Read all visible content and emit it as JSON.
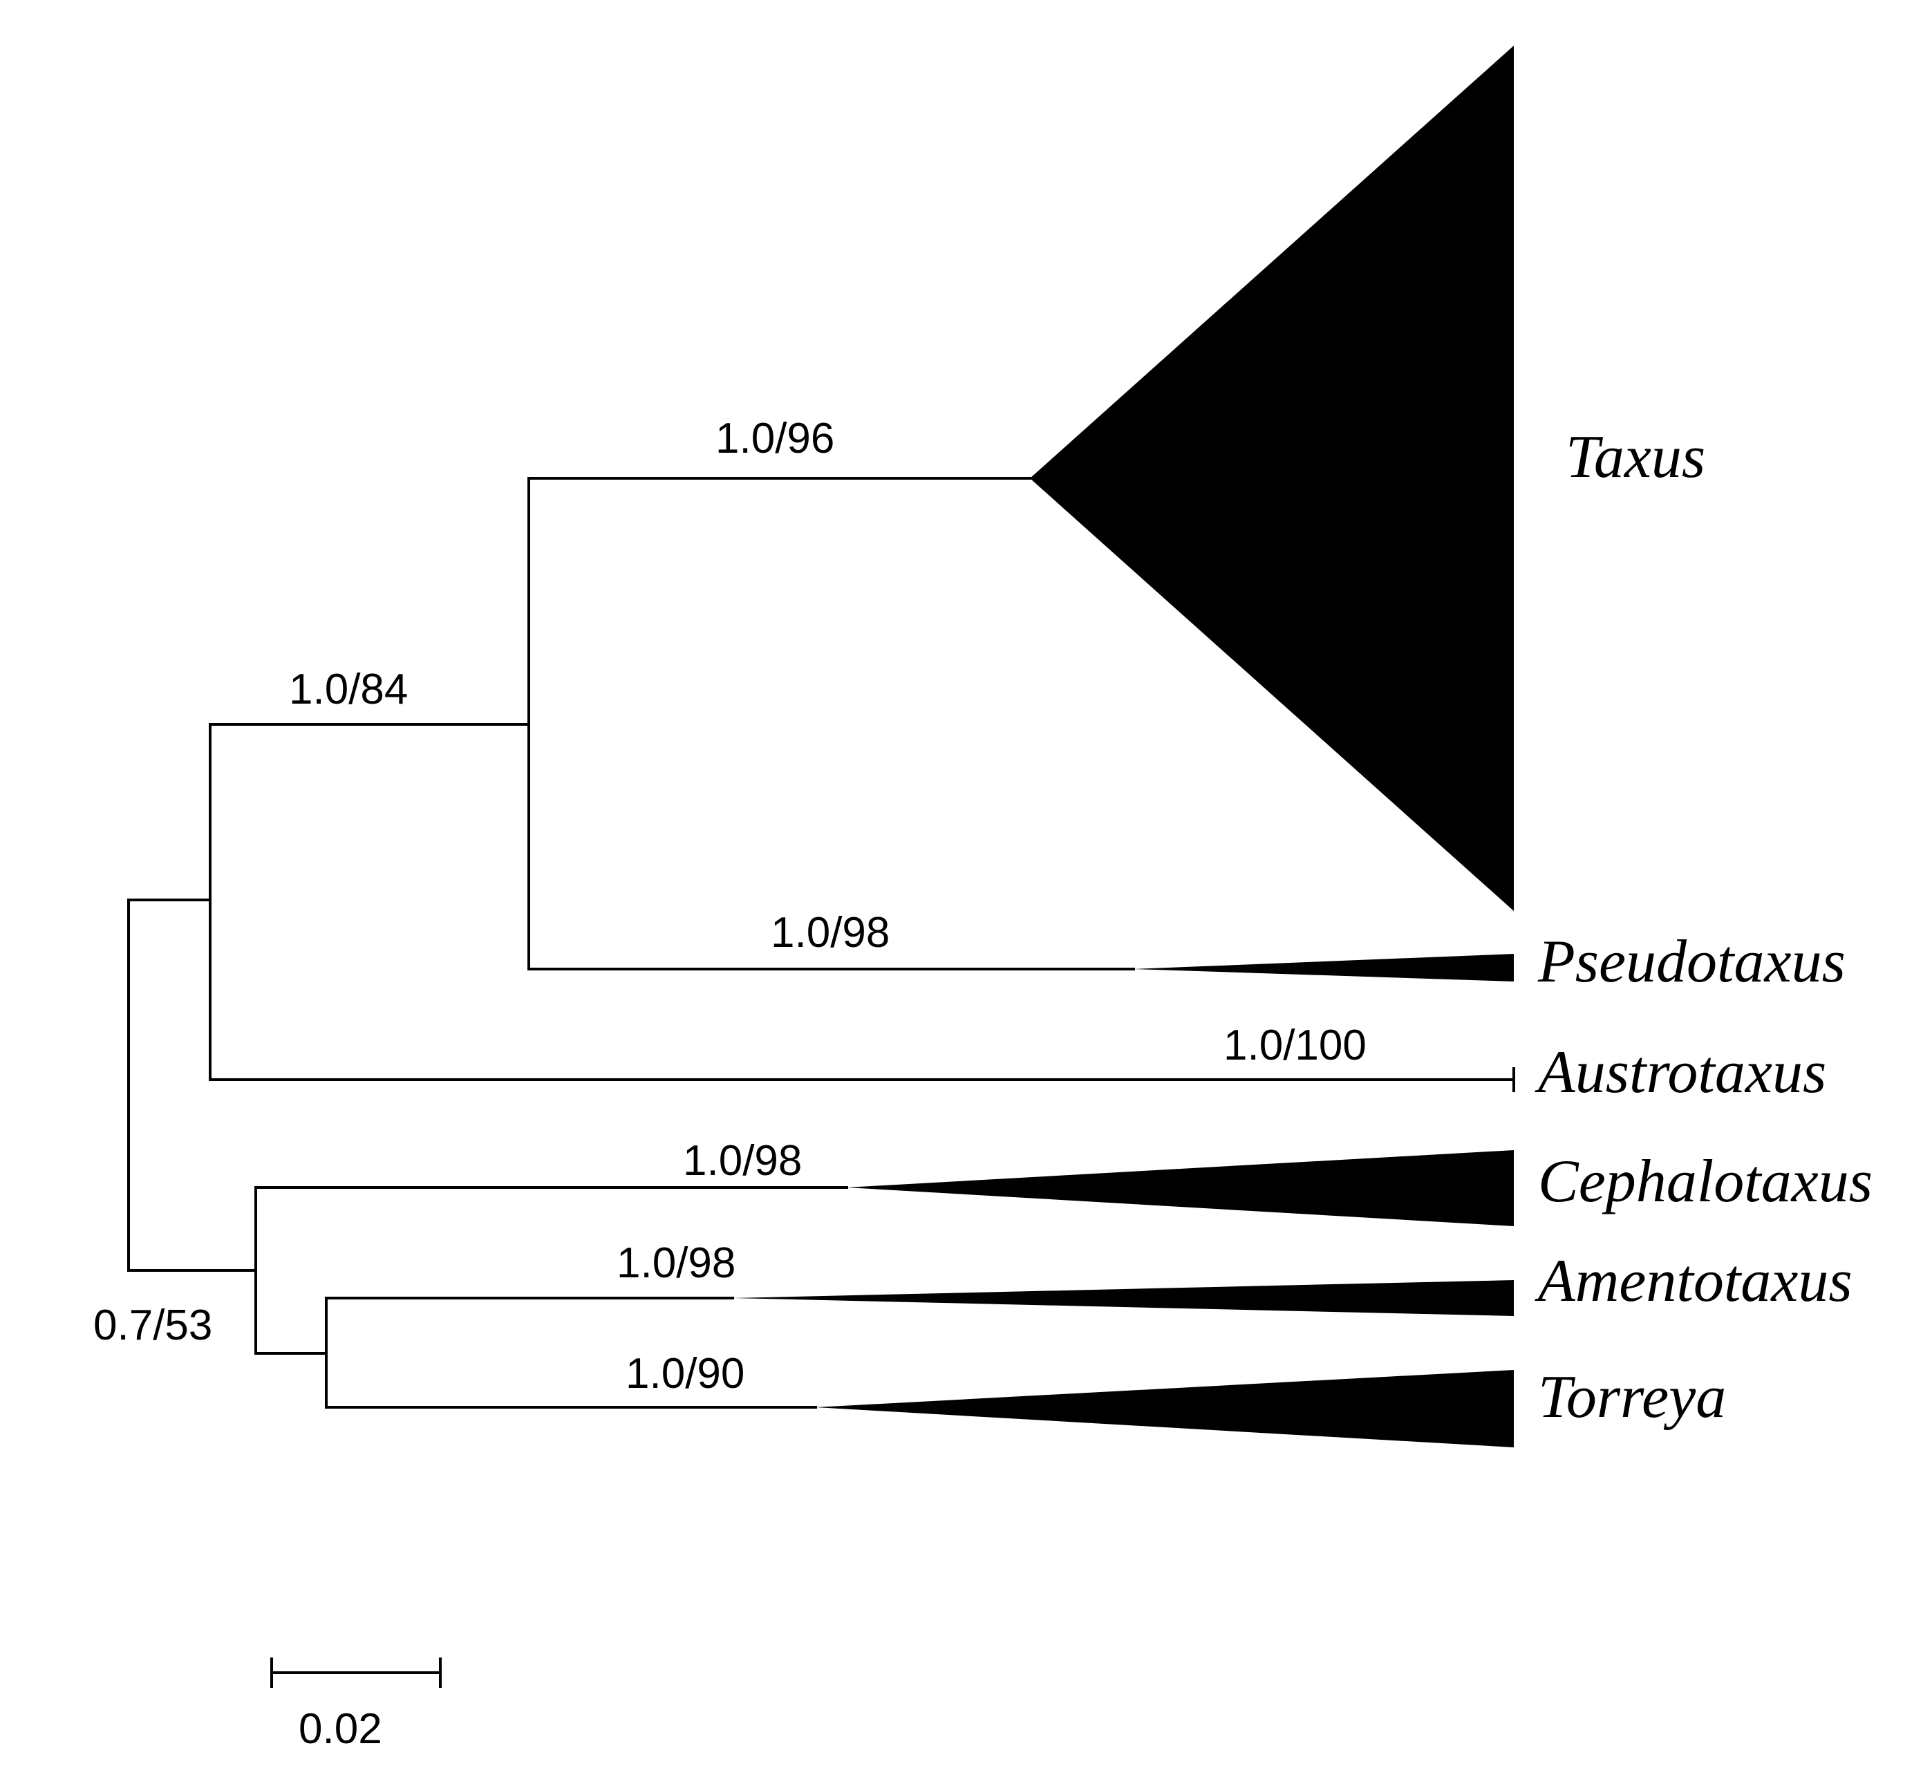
{
  "tree": {
    "taxa": [
      {
        "id": "taxus",
        "name": "Taxus"
      },
      {
        "id": "pseudotaxus",
        "name": "Pseudotaxus"
      },
      {
        "id": "austrotaxus",
        "name": "Austrotaxus"
      },
      {
        "id": "cephalotaxus",
        "name": "Cephalotaxus"
      },
      {
        "id": "amentotaxus",
        "name": "Amentotaxus"
      },
      {
        "id": "torreya",
        "name": "Torreya"
      }
    ],
    "support": {
      "taxus_stem": "1.0/96",
      "taxus_pseudotaxus": "1.0/84",
      "pseudotaxus_stem": "1.0/98",
      "austrotaxus_stem": "1.0/100",
      "cephalotaxus_stem": "1.0/98",
      "amentotaxus_stem": "1.0/98",
      "torreya_stem": "1.0/90",
      "basal_split": "0.7/53"
    },
    "scale_bar": {
      "label": "0.02",
      "value": 0.02
    }
  }
}
